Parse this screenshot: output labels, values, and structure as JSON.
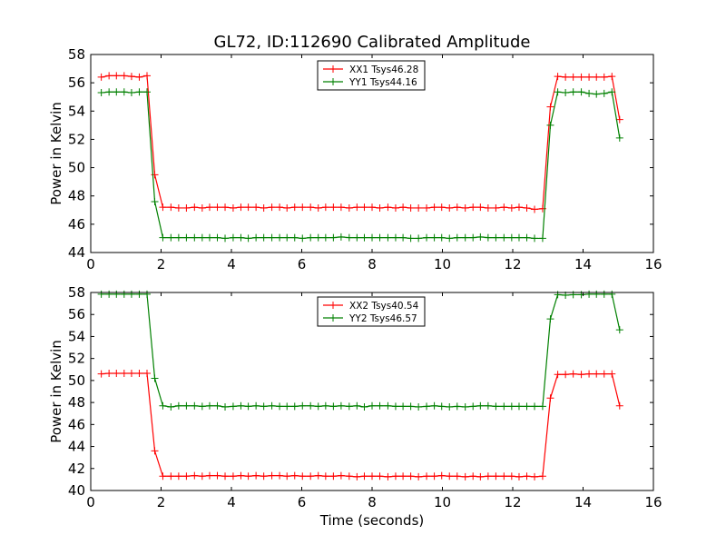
{
  "figure": {
    "title": "GL72, ID:112690 Calibrated Amplitude",
    "xlabel": "Time (seconds)"
  },
  "chart_data": [
    {
      "type": "line",
      "title": "GL72, ID:112690 Calibrated Amplitude",
      "xlabel": "",
      "ylabel": "Power in Kelvin",
      "xlim": [
        0,
        16
      ],
      "ylim": [
        44,
        58
      ],
      "x_ticks": [
        "0",
        "2",
        "4",
        "6",
        "8",
        "10",
        "12",
        "14",
        "16"
      ],
      "y_ticks": [
        "44",
        "46",
        "48",
        "50",
        "52",
        "54",
        "56",
        "58"
      ],
      "grid": false,
      "legend_position": "top-center",
      "x": [
        0.3,
        0.52,
        0.73,
        0.95,
        1.16,
        1.38,
        1.6,
        1.82,
        2.05,
        2.28,
        2.5,
        2.72,
        2.95,
        3.17,
        3.38,
        3.6,
        3.82,
        4.05,
        4.27,
        4.48,
        4.7,
        4.92,
        5.15,
        5.37,
        5.58,
        5.8,
        6.02,
        6.25,
        6.47,
        6.68,
        6.9,
        7.12,
        7.35,
        7.57,
        7.78,
        8.0,
        8.22,
        8.45,
        8.67,
        8.88,
        9.1,
        9.32,
        9.55,
        9.77,
        9.98,
        10.2,
        10.42,
        10.65,
        10.87,
        11.08,
        11.3,
        11.52,
        11.75,
        11.97,
        12.18,
        12.4,
        12.62,
        12.85,
        13.07,
        13.28,
        13.5,
        13.72,
        13.95,
        14.17,
        14.38,
        14.6,
        14.82,
        15.04
      ],
      "series": [
        {
          "name": "XX1 Tsys46.28",
          "color": "#ff0000",
          "values": [
            56.4,
            56.5,
            56.5,
            56.5,
            56.45,
            56.4,
            56.5,
            49.5,
            47.2,
            47.2,
            47.15,
            47.15,
            47.2,
            47.15,
            47.2,
            47.2,
            47.2,
            47.15,
            47.2,
            47.2,
            47.2,
            47.15,
            47.2,
            47.2,
            47.15,
            47.2,
            47.2,
            47.2,
            47.15,
            47.2,
            47.2,
            47.2,
            47.15,
            47.2,
            47.2,
            47.2,
            47.15,
            47.2,
            47.15,
            47.2,
            47.15,
            47.15,
            47.15,
            47.2,
            47.2,
            47.15,
            47.2,
            47.15,
            47.2,
            47.2,
            47.15,
            47.15,
            47.2,
            47.15,
            47.2,
            47.15,
            47.05,
            47.1,
            54.3,
            56.45,
            56.4,
            56.4,
            56.4,
            56.4,
            56.4,
            56.4,
            56.45,
            53.4
          ]
        },
        {
          "name": "YY1 Tsys44.16",
          "color": "#008000",
          "values": [
            55.3,
            55.35,
            55.35,
            55.35,
            55.3,
            55.35,
            55.35,
            47.6,
            45.05,
            45.05,
            45.05,
            45.05,
            45.05,
            45.05,
            45.05,
            45.05,
            45.0,
            45.05,
            45.05,
            45.0,
            45.05,
            45.05,
            45.05,
            45.05,
            45.05,
            45.05,
            45.0,
            45.05,
            45.05,
            45.05,
            45.05,
            45.1,
            45.05,
            45.05,
            45.05,
            45.05,
            45.05,
            45.05,
            45.05,
            45.05,
            45.0,
            45.0,
            45.05,
            45.05,
            45.05,
            45.0,
            45.05,
            45.05,
            45.05,
            45.1,
            45.05,
            45.05,
            45.05,
            45.05,
            45.05,
            45.05,
            45.0,
            45.0,
            53.0,
            55.35,
            55.3,
            55.35,
            55.35,
            55.25,
            55.2,
            55.25,
            55.35,
            52.1
          ]
        }
      ]
    },
    {
      "type": "line",
      "title": "",
      "xlabel": "Time (seconds)",
      "ylabel": "Power in Kelvin",
      "xlim": [
        0,
        16
      ],
      "ylim": [
        40,
        58
      ],
      "x_ticks": [
        "0",
        "2",
        "4",
        "6",
        "8",
        "10",
        "12",
        "14",
        "16"
      ],
      "y_ticks": [
        "40",
        "42",
        "44",
        "46",
        "48",
        "50",
        "52",
        "54",
        "56",
        "58"
      ],
      "grid": false,
      "legend_position": "top-center",
      "x": [
        0.3,
        0.52,
        0.73,
        0.95,
        1.16,
        1.38,
        1.6,
        1.82,
        2.05,
        2.28,
        2.5,
        2.72,
        2.95,
        3.17,
        3.38,
        3.6,
        3.82,
        4.05,
        4.27,
        4.48,
        4.7,
        4.92,
        5.15,
        5.37,
        5.58,
        5.8,
        6.02,
        6.25,
        6.47,
        6.68,
        6.9,
        7.12,
        7.35,
        7.57,
        7.78,
        8.0,
        8.22,
        8.45,
        8.67,
        8.88,
        9.1,
        9.32,
        9.55,
        9.77,
        9.98,
        10.2,
        10.42,
        10.65,
        10.87,
        11.08,
        11.3,
        11.52,
        11.75,
        11.97,
        12.18,
        12.4,
        12.62,
        12.85,
        13.07,
        13.28,
        13.5,
        13.72,
        13.95,
        14.17,
        14.38,
        14.6,
        14.82,
        15.04
      ],
      "series": [
        {
          "name": "XX2 Tsys40.54",
          "color": "#ff0000",
          "values": [
            50.6,
            50.65,
            50.65,
            50.65,
            50.65,
            50.65,
            50.65,
            43.6,
            41.3,
            41.3,
            41.3,
            41.3,
            41.35,
            41.3,
            41.35,
            41.35,
            41.3,
            41.3,
            41.35,
            41.3,
            41.35,
            41.3,
            41.35,
            41.35,
            41.3,
            41.35,
            41.3,
            41.3,
            41.35,
            41.3,
            41.3,
            41.35,
            41.3,
            41.25,
            41.3,
            41.3,
            41.3,
            41.25,
            41.3,
            41.3,
            41.3,
            41.25,
            41.3,
            41.3,
            41.35,
            41.3,
            41.3,
            41.25,
            41.3,
            41.25,
            41.3,
            41.3,
            41.3,
            41.3,
            41.25,
            41.3,
            41.25,
            41.3,
            48.4,
            50.55,
            50.55,
            50.6,
            50.55,
            50.6,
            50.6,
            50.6,
            50.6,
            47.7
          ]
        },
        {
          "name": "YY2 Tsys46.57",
          "color": "#008000",
          "values": [
            57.85,
            57.85,
            57.85,
            57.85,
            57.85,
            57.85,
            57.85,
            50.2,
            47.7,
            47.6,
            47.7,
            47.7,
            47.7,
            47.65,
            47.7,
            47.7,
            47.6,
            47.65,
            47.7,
            47.65,
            47.7,
            47.65,
            47.7,
            47.65,
            47.65,
            47.65,
            47.7,
            47.7,
            47.65,
            47.7,
            47.65,
            47.7,
            47.65,
            47.7,
            47.6,
            47.7,
            47.7,
            47.7,
            47.65,
            47.65,
            47.65,
            47.6,
            47.65,
            47.7,
            47.65,
            47.6,
            47.65,
            47.6,
            47.65,
            47.7,
            47.7,
            47.65,
            47.65,
            47.65,
            47.65,
            47.65,
            47.65,
            47.65,
            55.6,
            57.8,
            57.75,
            57.8,
            57.8,
            57.85,
            57.85,
            57.85,
            57.85,
            54.6
          ]
        }
      ]
    }
  ]
}
